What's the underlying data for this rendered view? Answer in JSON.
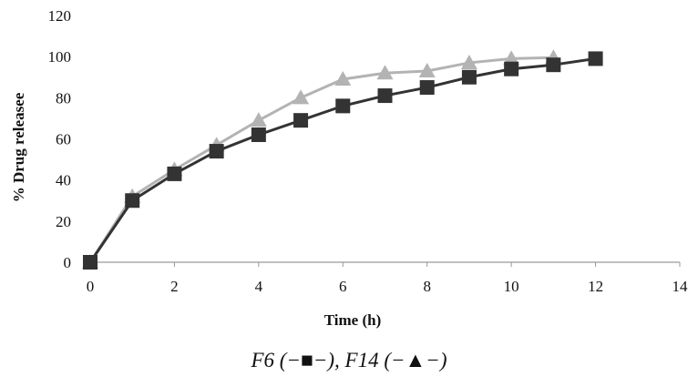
{
  "chart_data": {
    "type": "line",
    "xlabel": "Time (h)",
    "ylabel": "% Drug releasee",
    "xlim": [
      0,
      14
    ],
    "ylim": [
      0,
      120
    ],
    "xticks": [
      0,
      2,
      4,
      6,
      8,
      10,
      12,
      14
    ],
    "yticks": [
      0,
      20,
      40,
      60,
      80,
      100,
      120
    ],
    "grid": false,
    "series": [
      {
        "marker": "square",
        "color": "#333333",
        "x": [
          0,
          1,
          2,
          3,
          4,
          5,
          6,
          7,
          8,
          9,
          10,
          11,
          12
        ],
        "y": [
          0,
          30,
          43,
          54,
          62,
          69,
          76,
          81,
          85,
          90,
          94,
          96,
          99
        ]
      },
      {
        "marker": "triangle",
        "color": "#b3b3b3",
        "x": [
          0,
          1,
          2,
          3,
          4,
          5,
          6,
          7,
          8,
          9,
          10,
          11
        ],
        "y": [
          0,
          32,
          45,
          57,
          69,
          80,
          89,
          92,
          93,
          97,
          99,
          99.5
        ]
      }
    ]
  },
  "caption": "F6 (−■−), F14 (−▲−)"
}
